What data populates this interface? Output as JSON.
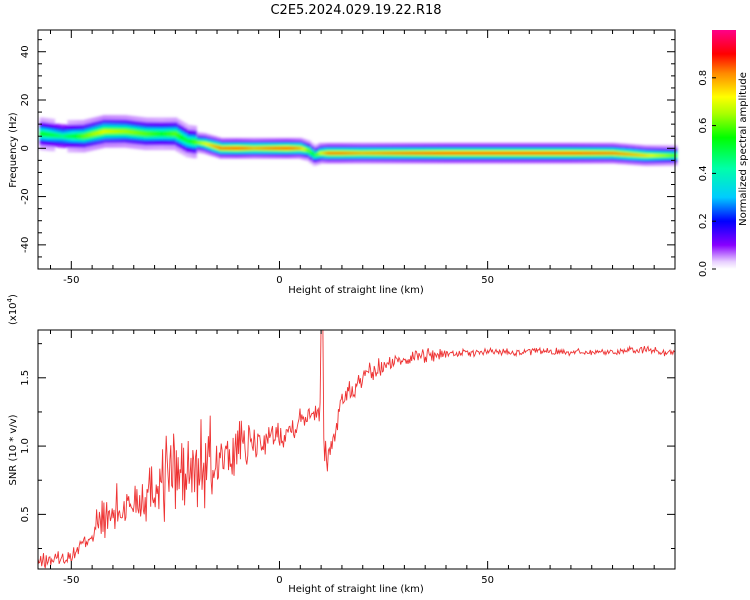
{
  "figure": {
    "title": "C2E5.2024.029.19.22.R18"
  },
  "chart_data": [
    {
      "type": "heatmap",
      "xlabel": "Height of straight line (km)",
      "ylabel": "Frequency (Hz)",
      "xlim": [
        -58,
        95
      ],
      "ylim": [
        -50,
        49
      ],
      "xticks": [
        -50,
        0,
        50
      ],
      "xtick_labels": [
        "-50",
        "0",
        "50"
      ],
      "yticks": [
        -40,
        -20,
        0,
        20,
        40
      ],
      "ytick_labels": [
        "-40",
        "-20",
        "0",
        "20",
        "40"
      ],
      "colorbar": {
        "label": "Normalized spectral amplitude",
        "range": [
          0,
          1
        ],
        "ticks": [
          0.0,
          0.2,
          0.4,
          0.6,
          0.8
        ],
        "tick_labels": [
          "0.0",
          "0.2",
          "0.4",
          "0.6",
          "0.8"
        ],
        "colormap": [
          "#ffffff",
          "#8800ff",
          "#0000ff",
          "#00ffff",
          "#00ff00",
          "#ffff00",
          "#ff8800",
          "#ff0000",
          "#ff00aa"
        ]
      },
      "ridge": {
        "x": [
          -57,
          -52,
          -47,
          -42,
          -37,
          -32,
          -28,
          -25,
          -22,
          -18,
          -14,
          -10,
          -6,
          -2,
          2,
          5,
          7,
          8.5,
          10,
          12,
          15,
          20,
          30,
          40,
          50,
          60,
          70,
          80,
          88,
          95
        ],
        "y": [
          6,
          5,
          5,
          7,
          7,
          6,
          6,
          6,
          3,
          2,
          0,
          0,
          0,
          0,
          0,
          0,
          -1,
          -3,
          -2,
          -2,
          -2,
          -2,
          -2,
          -2,
          -2,
          -2,
          -2,
          -2,
          -3,
          -3
        ],
        "amplitude": [
          0.55,
          0.45,
          0.6,
          0.7,
          0.65,
          0.6,
          0.55,
          0.6,
          0.5,
          0.7,
          0.85,
          0.9,
          0.8,
          0.85,
          0.9,
          0.8,
          0.6,
          0.5,
          0.7,
          0.85,
          0.85,
          0.8,
          0.85,
          0.9,
          0.9,
          0.9,
          0.9,
          0.85,
          0.75,
          0.6
        ]
      }
    },
    {
      "type": "line",
      "xlabel": "Height of straight line (km)",
      "ylabel": "SNR (10 * v/v)",
      "y_multiplier": "(x10",
      "y_multiplier_exp": "4",
      "y_multiplier_close": ")",
      "xlim": [
        -58,
        95
      ],
      "ylim": [
        1000,
        18500
      ],
      "xticks": [
        -50,
        0,
        50
      ],
      "xtick_labels": [
        "-50",
        "0",
        "50"
      ],
      "yticks": [
        5000,
        10000,
        15000
      ],
      "ytick_labels": [
        "0.5",
        "1.0",
        "1.5"
      ],
      "color": "#ee3333",
      "series": [
        {
          "x": [
            -58,
            -55,
            -52,
            -50,
            -48,
            -45,
            -42,
            -40,
            -38,
            -35,
            -32,
            -30,
            -28,
            -26,
            -25,
            -24,
            -23,
            -22,
            -21,
            -20,
            -19,
            -18,
            -17,
            -16,
            -15,
            -14,
            -12,
            -10,
            -8,
            -6,
            -4,
            -2,
            0,
            2,
            4,
            6,
            7,
            8,
            9,
            10,
            10.5,
            11,
            12,
            13,
            14,
            15,
            16,
            18,
            20,
            22,
            25,
            28,
            30,
            35,
            40,
            45,
            50,
            55,
            60,
            65,
            70,
            75,
            80,
            85,
            88,
            90,
            92,
            95
          ],
          "y": [
            1500,
            1700,
            1800,
            2000,
            2600,
            3600,
            4500,
            5000,
            5300,
            6000,
            6500,
            7000,
            7800,
            8300,
            8200,
            8400,
            8000,
            8100,
            7800,
            8200,
            8600,
            8500,
            8400,
            8700,
            8800,
            9000,
            9300,
            9800,
            10000,
            10100,
            10400,
            10600,
            10900,
            11100,
            11700,
            12100,
            12500,
            12800,
            13000,
            12000,
            10000,
            9200,
            9400,
            10800,
            12100,
            13400,
            13700,
            14200,
            14800,
            15300,
            15800,
            16200,
            16500,
            16700,
            16800,
            16800,
            16900,
            16900,
            16900,
            16900,
            16900,
            16900,
            16900,
            17000,
            17100,
            17000,
            16900,
            16800
          ]
        }
      ]
    }
  ]
}
